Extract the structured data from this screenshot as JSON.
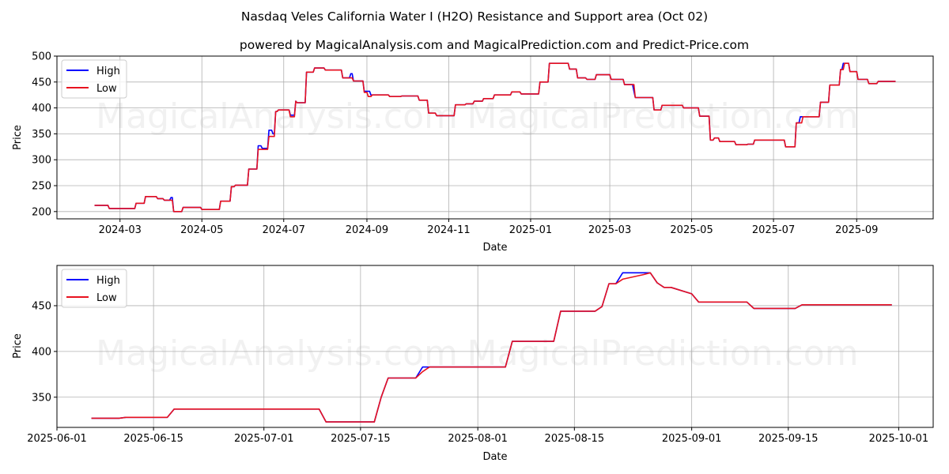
{
  "title": "Nasdaq Veles California Water I (H2O) Resistance and Support area (Oct 02)",
  "subtitle": "powered by MagicalAnalysis.com and MagicalPrediction.com and Predict-Price.com",
  "watermarks": [
    "MagicalAnalysis.com",
    "MagicalPrediction.com"
  ],
  "colors": {
    "high": "#0000ff",
    "low": "#e8121f"
  },
  "chart_data": [
    {
      "type": "line",
      "xlabel": "Date",
      "ylabel": "Price",
      "xlim": [
        "2024-01-14",
        "2025-10-28"
      ],
      "ylim": [
        186,
        500
      ],
      "yticks": [
        200,
        250,
        300,
        350,
        400,
        450,
        500
      ],
      "xticks": [
        "2024-03",
        "2024-05",
        "2024-07",
        "2024-09",
        "2024-11",
        "2025-01",
        "2025-03",
        "2025-05",
        "2025-07",
        "2025-09"
      ],
      "xtick_dates": [
        "2024-03-01",
        "2024-05-01",
        "2024-07-01",
        "2024-09-01",
        "2024-11-01",
        "2025-01-01",
        "2025-03-01",
        "2025-05-01",
        "2025-07-01",
        "2025-09-01"
      ],
      "grid": true,
      "legend": {
        "placement": "top-left",
        "entries": [
          "High",
          "Low"
        ]
      },
      "step": true,
      "low": [
        [
          "2024-02-11",
          212
        ],
        [
          "2024-02-22",
          206
        ],
        [
          "2024-03-13",
          216
        ],
        [
          "2024-03-20",
          229
        ],
        [
          "2024-03-29",
          225
        ],
        [
          "2024-04-03",
          222
        ],
        [
          "2024-04-10",
          200
        ],
        [
          "2024-04-17",
          208
        ],
        [
          "2024-05-01",
          204
        ],
        [
          "2024-05-15",
          220
        ],
        [
          "2024-05-23",
          248
        ],
        [
          "2024-05-26",
          251
        ],
        [
          "2024-06-05",
          282
        ],
        [
          "2024-06-12",
          320
        ],
        [
          "2024-06-20",
          345
        ],
        [
          "2024-06-25",
          393
        ],
        [
          "2024-06-27",
          396
        ],
        [
          "2024-07-06",
          383
        ],
        [
          "2024-07-10",
          413
        ],
        [
          "2024-07-11",
          410
        ],
        [
          "2024-07-18",
          469
        ],
        [
          "2024-07-24",
          477
        ],
        [
          "2024-08-01",
          473
        ],
        [
          "2024-08-14",
          458
        ],
        [
          "2024-08-22",
          452
        ],
        [
          "2024-08-30",
          430
        ],
        [
          "2024-09-02",
          422
        ],
        [
          "2024-09-05",
          425
        ],
        [
          "2024-09-18",
          422
        ],
        [
          "2024-09-27",
          423
        ],
        [
          "2024-10-10",
          415
        ],
        [
          "2024-10-17",
          390
        ],
        [
          "2024-10-23",
          385
        ],
        [
          "2024-11-06",
          406
        ],
        [
          "2024-11-14",
          408
        ],
        [
          "2024-11-20",
          413
        ],
        [
          "2024-11-27",
          418
        ],
        [
          "2024-12-05",
          425
        ],
        [
          "2024-12-18",
          431
        ],
        [
          "2024-12-25",
          427
        ],
        [
          "2025-01-08",
          450
        ],
        [
          "2025-01-15",
          486
        ],
        [
          "2025-01-30",
          475
        ],
        [
          "2025-02-05",
          458
        ],
        [
          "2025-02-12",
          455
        ],
        [
          "2025-02-19",
          464
        ],
        [
          "2025-03-02",
          455
        ],
        [
          "2025-03-12",
          445
        ],
        [
          "2025-03-20",
          420
        ],
        [
          "2025-04-03",
          396
        ],
        [
          "2025-04-09",
          405
        ],
        [
          "2025-04-25",
          400
        ],
        [
          "2025-05-07",
          384
        ],
        [
          "2025-05-15",
          338
        ],
        [
          "2025-05-18",
          342
        ],
        [
          "2025-05-22",
          335
        ],
        [
          "2025-06-03",
          329
        ],
        [
          "2025-06-12",
          330
        ],
        [
          "2025-06-17",
          338
        ],
        [
          "2025-07-10",
          325
        ],
        [
          "2025-07-18",
          371
        ],
        [
          "2025-07-23",
          383
        ],
        [
          "2025-08-05",
          411
        ],
        [
          "2025-08-12",
          444
        ],
        [
          "2025-08-20",
          474
        ],
        [
          "2025-08-23",
          486
        ],
        [
          "2025-08-27",
          470
        ],
        [
          "2025-09-02",
          455
        ],
        [
          "2025-09-10",
          447
        ],
        [
          "2025-09-17",
          451
        ],
        [
          "2025-09-30",
          451
        ]
      ],
      "high": [
        [
          "2024-02-11",
          212
        ],
        [
          "2024-02-22",
          206
        ],
        [
          "2024-03-13",
          216
        ],
        [
          "2024-03-20",
          229
        ],
        [
          "2024-03-29",
          225
        ],
        [
          "2024-04-03",
          222
        ],
        [
          "2024-04-08",
          227
        ],
        [
          "2024-04-10",
          200
        ],
        [
          "2024-04-17",
          208
        ],
        [
          "2024-05-01",
          204
        ],
        [
          "2024-05-15",
          220
        ],
        [
          "2024-05-23",
          248
        ],
        [
          "2024-05-26",
          251
        ],
        [
          "2024-06-05",
          282
        ],
        [
          "2024-06-12",
          327
        ],
        [
          "2024-06-15",
          322
        ],
        [
          "2024-06-20",
          357
        ],
        [
          "2024-06-23",
          350
        ],
        [
          "2024-06-25",
          393
        ],
        [
          "2024-06-27",
          396
        ],
        [
          "2024-07-06",
          386
        ],
        [
          "2024-07-10",
          413
        ],
        [
          "2024-07-11",
          410
        ],
        [
          "2024-07-18",
          469
        ],
        [
          "2024-07-24",
          477
        ],
        [
          "2024-08-01",
          473
        ],
        [
          "2024-08-14",
          458
        ],
        [
          "2024-08-20",
          466
        ],
        [
          "2024-08-22",
          452
        ],
        [
          "2024-08-30",
          432
        ],
        [
          "2024-09-04",
          425
        ],
        [
          "2024-09-18",
          422
        ],
        [
          "2024-09-27",
          423
        ],
        [
          "2024-10-10",
          415
        ],
        [
          "2024-10-17",
          390
        ],
        [
          "2024-10-23",
          385
        ],
        [
          "2024-11-06",
          406
        ],
        [
          "2024-11-14",
          408
        ],
        [
          "2024-11-20",
          413
        ],
        [
          "2024-11-27",
          418
        ],
        [
          "2024-12-05",
          425
        ],
        [
          "2024-12-18",
          431
        ],
        [
          "2024-12-25",
          427
        ],
        [
          "2025-01-08",
          450
        ],
        [
          "2025-01-15",
          486
        ],
        [
          "2025-01-30",
          475
        ],
        [
          "2025-02-05",
          458
        ],
        [
          "2025-02-12",
          455
        ],
        [
          "2025-02-19",
          464
        ],
        [
          "2025-03-02",
          455
        ],
        [
          "2025-03-12",
          445
        ],
        [
          "2025-03-19",
          432
        ],
        [
          "2025-03-20",
          420
        ],
        [
          "2025-04-03",
          396
        ],
        [
          "2025-04-09",
          405
        ],
        [
          "2025-04-25",
          400
        ],
        [
          "2025-05-07",
          384
        ],
        [
          "2025-05-15",
          338
        ],
        [
          "2025-05-18",
          342
        ],
        [
          "2025-05-22",
          335
        ],
        [
          "2025-06-03",
          329
        ],
        [
          "2025-06-12",
          330
        ],
        [
          "2025-06-17",
          338
        ],
        [
          "2025-07-10",
          325
        ],
        [
          "2025-07-18",
          371
        ],
        [
          "2025-07-21",
          383
        ],
        [
          "2025-08-05",
          411
        ],
        [
          "2025-08-12",
          444
        ],
        [
          "2025-08-20",
          474
        ],
        [
          "2025-08-22",
          486
        ],
        [
          "2025-08-27",
          470
        ],
        [
          "2025-09-02",
          455
        ],
        [
          "2025-09-10",
          447
        ],
        [
          "2025-09-17",
          451
        ],
        [
          "2025-09-30",
          451
        ]
      ]
    },
    {
      "type": "line",
      "xlabel": "Date",
      "ylabel": "Price",
      "xlim": [
        "2025-06-01",
        "2025-10-06"
      ],
      "ylim": [
        317,
        494
      ],
      "yticks": [
        350,
        400,
        450
      ],
      "xticks": [
        "2025-06-01",
        "2025-06-15",
        "2025-07-01",
        "2025-07-15",
        "2025-08-01",
        "2025-08-15",
        "2025-09-01",
        "2025-09-15",
        "2025-10-01"
      ],
      "grid": true,
      "legend": {
        "placement": "top-left",
        "entries": [
          "High",
          "Low"
        ]
      },
      "step": false,
      "high": [
        [
          "2025-06-06",
          327
        ],
        [
          "2025-06-10",
          327
        ],
        [
          "2025-06-11",
          328
        ],
        [
          "2025-06-17",
          328
        ],
        [
          "2025-06-18",
          337
        ],
        [
          "2025-07-09",
          337
        ],
        [
          "2025-07-10",
          323
        ],
        [
          "2025-07-17",
          323
        ],
        [
          "2025-07-18",
          350
        ],
        [
          "2025-07-19",
          371
        ],
        [
          "2025-07-23",
          371
        ],
        [
          "2025-07-24",
          383
        ],
        [
          "2025-08-05",
          383
        ],
        [
          "2025-08-06",
          411
        ],
        [
          "2025-08-12",
          411
        ],
        [
          "2025-08-13",
          444
        ],
        [
          "2025-08-18",
          444
        ],
        [
          "2025-08-19",
          449
        ],
        [
          "2025-08-20",
          474
        ],
        [
          "2025-08-21",
          474
        ],
        [
          "2025-08-22",
          486
        ],
        [
          "2025-08-26",
          486
        ],
        [
          "2025-08-27",
          475
        ],
        [
          "2025-08-28",
          470
        ],
        [
          "2025-08-29",
          470
        ],
        [
          "2025-09-01",
          463
        ],
        [
          "2025-09-02",
          454
        ],
        [
          "2025-09-09",
          454
        ],
        [
          "2025-09-10",
          447
        ],
        [
          "2025-09-16",
          447
        ],
        [
          "2025-09-17",
          451
        ],
        [
          "2025-09-30",
          451
        ]
      ],
      "low": [
        [
          "2025-06-06",
          327
        ],
        [
          "2025-06-10",
          327
        ],
        [
          "2025-06-11",
          328
        ],
        [
          "2025-06-17",
          328
        ],
        [
          "2025-06-18",
          337
        ],
        [
          "2025-07-09",
          337
        ],
        [
          "2025-07-10",
          323
        ],
        [
          "2025-07-17",
          323
        ],
        [
          "2025-07-18",
          350
        ],
        [
          "2025-07-19",
          371
        ],
        [
          "2025-07-23",
          371
        ],
        [
          "2025-07-24",
          378
        ],
        [
          "2025-07-25",
          383
        ],
        [
          "2025-08-05",
          383
        ],
        [
          "2025-08-06",
          411
        ],
        [
          "2025-08-12",
          411
        ],
        [
          "2025-08-13",
          444
        ],
        [
          "2025-08-18",
          444
        ],
        [
          "2025-08-19",
          449
        ],
        [
          "2025-08-20",
          474
        ],
        [
          "2025-08-21",
          474
        ],
        [
          "2025-08-22",
          479
        ],
        [
          "2025-08-25",
          484
        ],
        [
          "2025-08-26",
          486
        ],
        [
          "2025-08-27",
          475
        ],
        [
          "2025-08-28",
          470
        ],
        [
          "2025-08-29",
          470
        ],
        [
          "2025-09-01",
          463
        ],
        [
          "2025-09-02",
          454
        ],
        [
          "2025-09-09",
          454
        ],
        [
          "2025-09-10",
          447
        ],
        [
          "2025-09-16",
          447
        ],
        [
          "2025-09-17",
          451
        ],
        [
          "2025-09-30",
          451
        ]
      ]
    }
  ]
}
